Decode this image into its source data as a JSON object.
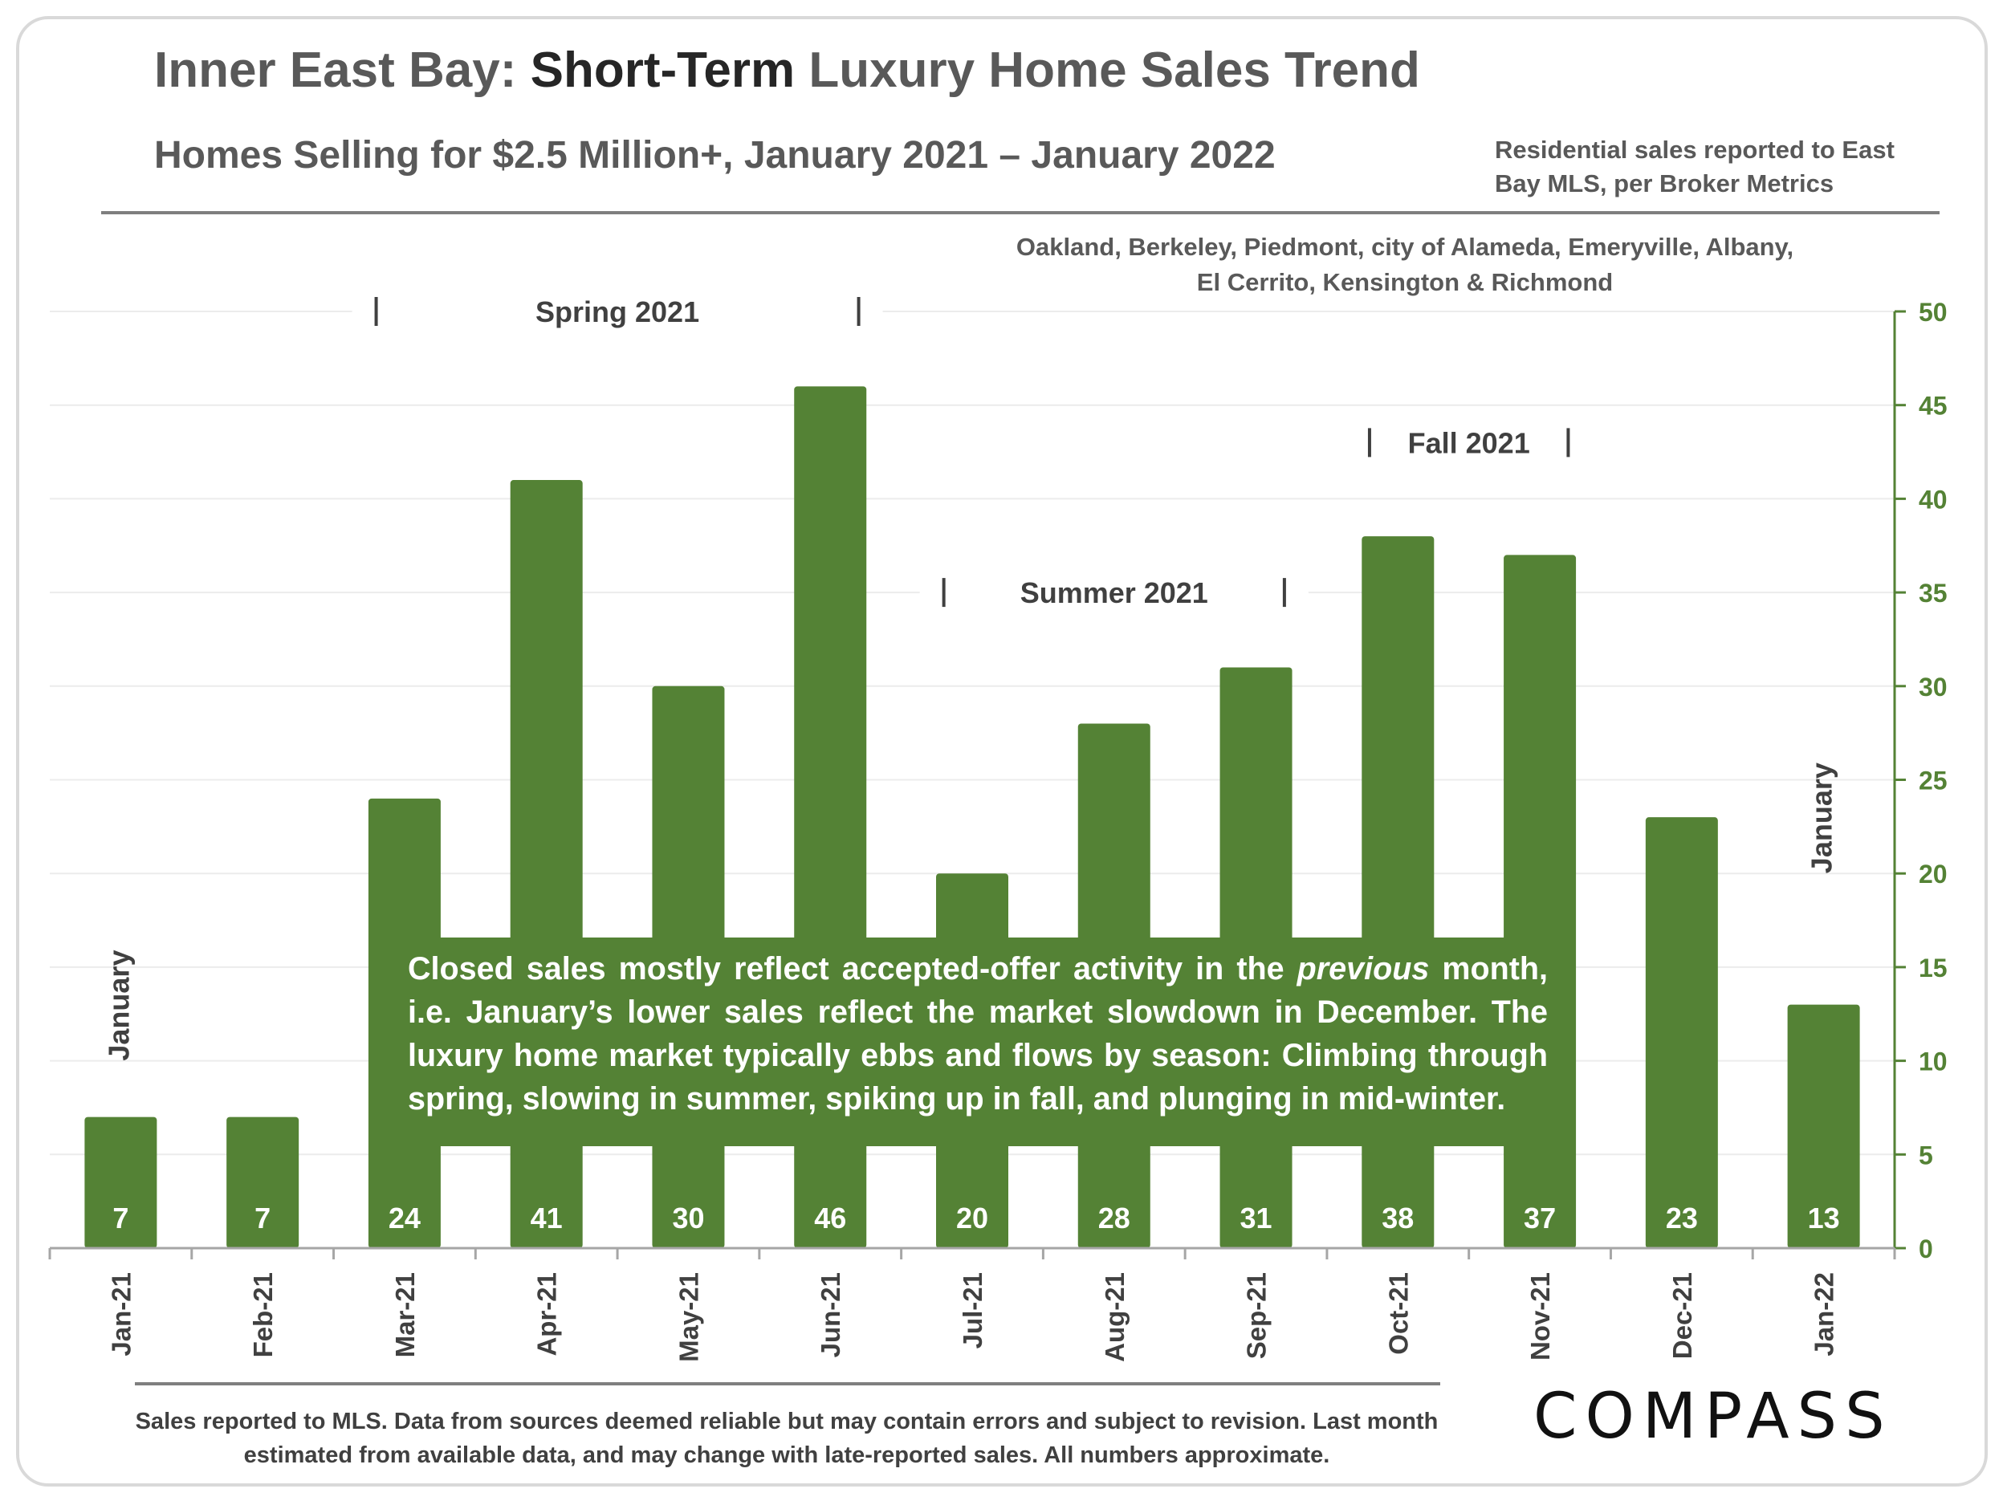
{
  "header": {
    "title_prefix": "Inner East Bay: ",
    "title_emph": "Short-Term",
    "title_suffix": " Luxury Home Sales Trend",
    "subtitle": "Homes Selling for $2.5 Million+, January 2021 – January 2022",
    "source_note": "Residential sales reported to East Bay MLS, per Broker Metrics",
    "region_note": "Oakland, Berkeley, Piedmont, city of Alameda, Emeryville, Albany, El Cerrito, Kensington & Richmond"
  },
  "chart_data": {
    "type": "bar",
    "categories": [
      "Jan-21",
      "Feb-21",
      "Mar-21",
      "Apr-21",
      "May-21",
      "Jun-21",
      "Jul-21",
      "Aug-21",
      "Sep-21",
      "Oct-21",
      "Nov-21",
      "Dec-21",
      "Jan-22"
    ],
    "values": [
      7,
      7,
      24,
      41,
      30,
      46,
      20,
      28,
      31,
      38,
      37,
      23,
      13
    ],
    "ylim": [
      0,
      50
    ],
    "yticks": [
      0,
      5,
      10,
      15,
      20,
      25,
      30,
      35,
      40,
      45,
      50
    ],
    "y_axis_position": "right",
    "grid": true,
    "bar_color": "#548235",
    "axis_color": "#548235",
    "data_label_color": "#ffffff",
    "season_labels": [
      {
        "text": "Spring 2021",
        "from": "Mar-21",
        "to": "Jun-21",
        "level": 50
      },
      {
        "text": "Summer 2021",
        "from": "Jul-21",
        "to": "Sep-21",
        "level": 35
      },
      {
        "text": "Fall 2021",
        "from": "Oct-21",
        "to": "Nov-21",
        "level": 43
      }
    ],
    "month_callouts": [
      {
        "text": "January",
        "category": "Jan-21",
        "level": 10
      },
      {
        "text": "January",
        "category": "Jan-22",
        "level": 20
      }
    ]
  },
  "overlay_note": {
    "part1": "Closed sales mostly reflect accepted-offer activity in the ",
    "italic": "previous",
    "part2": " month, i.e. January’s lower sales reflect the market slowdown in December. The luxury home market typically ebbs and flows by season: Climbing through spring, slowing in summer, spiking up in fall, and plunging in mid-winter."
  },
  "footer": {
    "footnote": "Sales reported to MLS. Data from sources deemed reliable but may contain errors and subject to revision.  Last month estimated from available data, and may change with late-reported sales. All numbers approximate.",
    "logo": "COMPASS"
  }
}
